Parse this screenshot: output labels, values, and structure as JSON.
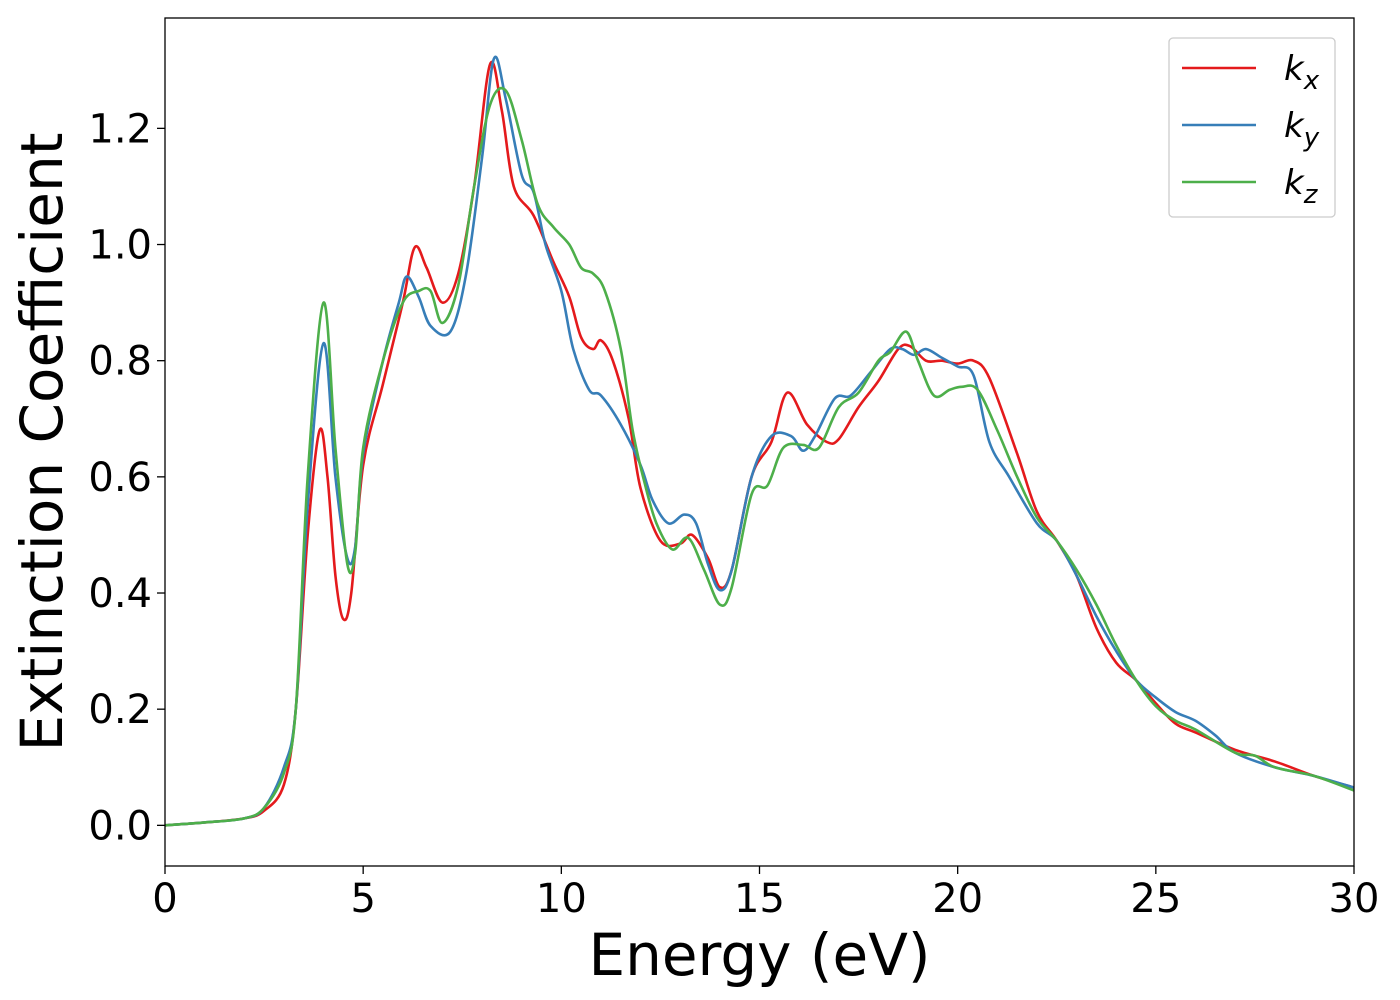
{
  "chart_data": {
    "type": "line",
    "title": "",
    "xlabel": "Energy (eV)",
    "ylabel": "Extinction Coefficient",
    "xlim": [
      0,
      30
    ],
    "ylim": [
      -0.07,
      1.39
    ],
    "xticks": [
      0,
      5,
      10,
      15,
      20,
      25,
      30
    ],
    "yticks": [
      0.0,
      0.2,
      0.4,
      0.6,
      0.8,
      1.0,
      1.2
    ],
    "grid": false,
    "legend_position": "top-right",
    "series": [
      {
        "name": "k_x",
        "label_base": "k",
        "label_sub": "x",
        "color": "#e41a1c",
        "points": [
          [
            0,
            0
          ],
          [
            1,
            0.005
          ],
          [
            2,
            0.012
          ],
          [
            2.5,
            0.025
          ],
          [
            3,
            0.07
          ],
          [
            3.3,
            0.2
          ],
          [
            3.6,
            0.5
          ],
          [
            3.9,
            0.68
          ],
          [
            4.1,
            0.6
          ],
          [
            4.3,
            0.43
          ],
          [
            4.5,
            0.355
          ],
          [
            4.7,
            0.4
          ],
          [
            5,
            0.62
          ],
          [
            5.5,
            0.76
          ],
          [
            6,
            0.9
          ],
          [
            6.3,
            0.995
          ],
          [
            6.6,
            0.96
          ],
          [
            7,
            0.9
          ],
          [
            7.4,
            0.95
          ],
          [
            7.8,
            1.1
          ],
          [
            8.2,
            1.31
          ],
          [
            8.5,
            1.23
          ],
          [
            8.8,
            1.1
          ],
          [
            9.3,
            1.05
          ],
          [
            9.8,
            0.97
          ],
          [
            10.2,
            0.91
          ],
          [
            10.5,
            0.84
          ],
          [
            10.8,
            0.82
          ],
          [
            11,
            0.835
          ],
          [
            11.3,
            0.8
          ],
          [
            11.7,
            0.7
          ],
          [
            12,
            0.58
          ],
          [
            12.5,
            0.49
          ],
          [
            13,
            0.485
          ],
          [
            13.3,
            0.5
          ],
          [
            13.7,
            0.46
          ],
          [
            14,
            0.41
          ],
          [
            14.3,
            0.44
          ],
          [
            14.8,
            0.6
          ],
          [
            15.3,
            0.66
          ],
          [
            15.7,
            0.745
          ],
          [
            16.2,
            0.69
          ],
          [
            16.7,
            0.66
          ],
          [
            17,
            0.665
          ],
          [
            17.5,
            0.72
          ],
          [
            18,
            0.765
          ],
          [
            18.5,
            0.82
          ],
          [
            18.8,
            0.825
          ],
          [
            19.2,
            0.8
          ],
          [
            19.6,
            0.8
          ],
          [
            20,
            0.795
          ],
          [
            20.4,
            0.8
          ],
          [
            20.8,
            0.77
          ],
          [
            21.5,
            0.64
          ],
          [
            22,
            0.54
          ],
          [
            22.5,
            0.49
          ],
          [
            23,
            0.43
          ],
          [
            23.5,
            0.34
          ],
          [
            24,
            0.28
          ],
          [
            24.5,
            0.25
          ],
          [
            25,
            0.21
          ],
          [
            25.5,
            0.175
          ],
          [
            26,
            0.16
          ],
          [
            27,
            0.13
          ],
          [
            28,
            0.11
          ],
          [
            29,
            0.085
          ],
          [
            30,
            0.065
          ]
        ]
      },
      {
        "name": "k_y",
        "label_base": "k",
        "label_sub": "y",
        "color": "#377eb8",
        "points": [
          [
            0,
            0
          ],
          [
            1,
            0.005
          ],
          [
            2,
            0.012
          ],
          [
            2.5,
            0.03
          ],
          [
            3,
            0.1
          ],
          [
            3.3,
            0.2
          ],
          [
            3.6,
            0.55
          ],
          [
            4,
            0.83
          ],
          [
            4.3,
            0.6
          ],
          [
            4.6,
            0.46
          ],
          [
            4.8,
            0.48
          ],
          [
            5,
            0.64
          ],
          [
            5.5,
            0.8
          ],
          [
            5.9,
            0.9
          ],
          [
            6.1,
            0.945
          ],
          [
            6.4,
            0.91
          ],
          [
            6.7,
            0.86
          ],
          [
            7.2,
            0.85
          ],
          [
            7.6,
            0.95
          ],
          [
            8,
            1.15
          ],
          [
            8.3,
            1.32
          ],
          [
            8.6,
            1.25
          ],
          [
            9,
            1.12
          ],
          [
            9.3,
            1.09
          ],
          [
            9.6,
            1.0
          ],
          [
            10,
            0.92
          ],
          [
            10.3,
            0.82
          ],
          [
            10.7,
            0.75
          ],
          [
            11,
            0.74
          ],
          [
            11.5,
            0.69
          ],
          [
            12,
            0.62
          ],
          [
            12.3,
            0.56
          ],
          [
            12.7,
            0.52
          ],
          [
            13.1,
            0.535
          ],
          [
            13.4,
            0.52
          ],
          [
            13.7,
            0.45
          ],
          [
            14,
            0.405
          ],
          [
            14.3,
            0.44
          ],
          [
            14.8,
            0.6
          ],
          [
            15.3,
            0.67
          ],
          [
            15.8,
            0.67
          ],
          [
            16.1,
            0.645
          ],
          [
            16.4,
            0.67
          ],
          [
            16.9,
            0.735
          ],
          [
            17.3,
            0.74
          ],
          [
            17.8,
            0.78
          ],
          [
            18.3,
            0.82
          ],
          [
            18.6,
            0.82
          ],
          [
            18.9,
            0.81
          ],
          [
            19.2,
            0.82
          ],
          [
            19.6,
            0.805
          ],
          [
            20,
            0.79
          ],
          [
            20.4,
            0.775
          ],
          [
            20.8,
            0.66
          ],
          [
            21.3,
            0.6
          ],
          [
            22,
            0.52
          ],
          [
            22.5,
            0.49
          ],
          [
            23,
            0.43
          ],
          [
            23.5,
            0.36
          ],
          [
            24,
            0.3
          ],
          [
            24.5,
            0.25
          ],
          [
            25,
            0.22
          ],
          [
            25.5,
            0.195
          ],
          [
            26,
            0.18
          ],
          [
            26.5,
            0.155
          ],
          [
            27,
            0.125
          ],
          [
            28,
            0.1
          ],
          [
            29,
            0.085
          ],
          [
            30,
            0.065
          ]
        ]
      },
      {
        "name": "k_z",
        "label_base": "k",
        "label_sub": "z",
        "color": "#4daf4a",
        "points": [
          [
            0,
            0
          ],
          [
            1,
            0.005
          ],
          [
            2,
            0.012
          ],
          [
            2.5,
            0.03
          ],
          [
            3,
            0.09
          ],
          [
            3.3,
            0.2
          ],
          [
            3.6,
            0.6
          ],
          [
            4,
            0.9
          ],
          [
            4.3,
            0.65
          ],
          [
            4.6,
            0.45
          ],
          [
            4.8,
            0.47
          ],
          [
            5,
            0.65
          ],
          [
            5.5,
            0.8
          ],
          [
            6,
            0.9
          ],
          [
            6.4,
            0.92
          ],
          [
            6.7,
            0.92
          ],
          [
            7,
            0.865
          ],
          [
            7.4,
            0.93
          ],
          [
            7.8,
            1.1
          ],
          [
            8.2,
            1.24
          ],
          [
            8.6,
            1.265
          ],
          [
            9,
            1.18
          ],
          [
            9.4,
            1.07
          ],
          [
            9.8,
            1.03
          ],
          [
            10.2,
            1.0
          ],
          [
            10.5,
            0.96
          ],
          [
            10.8,
            0.95
          ],
          [
            11.1,
            0.92
          ],
          [
            11.5,
            0.82
          ],
          [
            11.8,
            0.68
          ],
          [
            12.1,
            0.59
          ],
          [
            12.4,
            0.52
          ],
          [
            12.8,
            0.475
          ],
          [
            13.2,
            0.495
          ],
          [
            13.6,
            0.44
          ],
          [
            14,
            0.38
          ],
          [
            14.3,
            0.41
          ],
          [
            14.8,
            0.57
          ],
          [
            15.2,
            0.585
          ],
          [
            15.6,
            0.65
          ],
          [
            16.1,
            0.655
          ],
          [
            16.5,
            0.65
          ],
          [
            17,
            0.72
          ],
          [
            17.5,
            0.745
          ],
          [
            18,
            0.8
          ],
          [
            18.3,
            0.815
          ],
          [
            18.7,
            0.85
          ],
          [
            19,
            0.8
          ],
          [
            19.4,
            0.74
          ],
          [
            19.8,
            0.75
          ],
          [
            20.1,
            0.755
          ],
          [
            20.5,
            0.75
          ],
          [
            21,
            0.68
          ],
          [
            21.5,
            0.6
          ],
          [
            22,
            0.53
          ],
          [
            22.5,
            0.49
          ],
          [
            23,
            0.44
          ],
          [
            23.5,
            0.38
          ],
          [
            24,
            0.31
          ],
          [
            24.5,
            0.25
          ],
          [
            25,
            0.205
          ],
          [
            25.5,
            0.18
          ],
          [
            26,
            0.165
          ],
          [
            27,
            0.125
          ],
          [
            27.5,
            0.12
          ],
          [
            28,
            0.1
          ],
          [
            29,
            0.085
          ],
          [
            30,
            0.06
          ]
        ]
      }
    ]
  }
}
